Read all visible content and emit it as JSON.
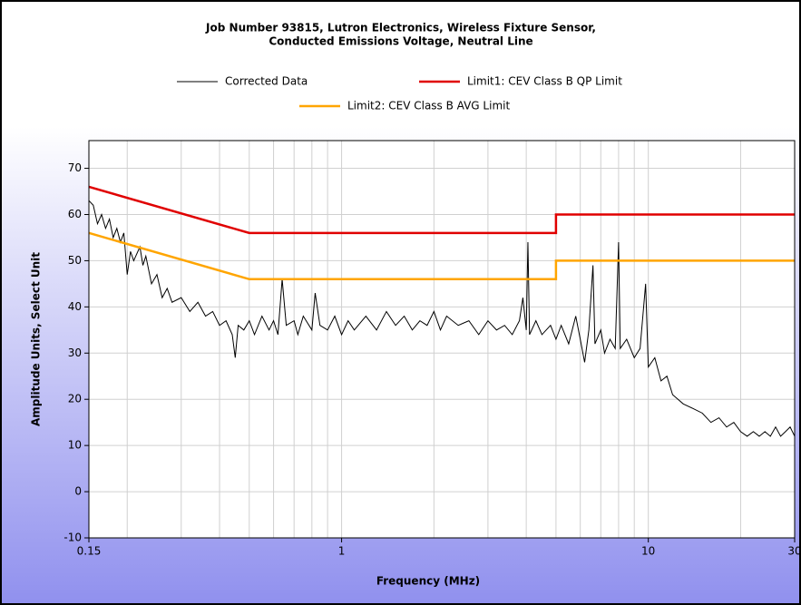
{
  "chart_data": {
    "type": "line",
    "title": [
      "Job Number 93815, Lutron Electronics, Wireless Fixture Sensor,",
      "Conducted Emissions Voltage, Neutral Line"
    ],
    "x_label": "Frequency (MHz)",
    "y_label": "Amplitude Units, Select Unit",
    "xscale": "log",
    "xlim": [
      0.15,
      30
    ],
    "ylim": [
      -10,
      76
    ],
    "xticks": [
      0.15,
      1,
      10,
      30
    ],
    "minor_xticks": [
      0.2,
      0.3,
      0.4,
      0.5,
      0.6,
      0.7,
      0.8,
      0.9,
      2,
      3,
      4,
      5,
      6,
      7,
      8,
      9,
      20
    ],
    "yticks": [
      -10,
      0,
      10,
      20,
      30,
      40,
      50,
      60,
      70
    ],
    "grid": true,
    "series": [
      {
        "name": "Corrected Data",
        "color": "#000000",
        "x": [
          0.15,
          0.155,
          0.16,
          0.165,
          0.17,
          0.175,
          0.18,
          0.185,
          0.19,
          0.195,
          0.2,
          0.205,
          0.21,
          0.22,
          0.225,
          0.23,
          0.24,
          0.25,
          0.26,
          0.27,
          0.28,
          0.3,
          0.32,
          0.34,
          0.36,
          0.38,
          0.4,
          0.42,
          0.44,
          0.45,
          0.46,
          0.48,
          0.5,
          0.52,
          0.55,
          0.58,
          0.6,
          0.62,
          0.64,
          0.66,
          0.7,
          0.72,
          0.75,
          0.8,
          0.82,
          0.85,
          0.9,
          0.95,
          1,
          1.05,
          1.1,
          1.2,
          1.3,
          1.4,
          1.5,
          1.6,
          1.7,
          1.8,
          1.9,
          2,
          2.1,
          2.2,
          2.4,
          2.6,
          2.8,
          3,
          3.2,
          3.4,
          3.6,
          3.8,
          3.9,
          4,
          4.05,
          4.1,
          4.3,
          4.5,
          4.8,
          5,
          5.2,
          5.5,
          5.8,
          6,
          6.2,
          6.4,
          6.6,
          6.7,
          7,
          7.2,
          7.5,
          7.8,
          8,
          8.1,
          8.5,
          9,
          9.4,
          9.8,
          10,
          10.5,
          11,
          11.5,
          12,
          13,
          14,
          15,
          16,
          17,
          18,
          19,
          20,
          21,
          22,
          23,
          24,
          25,
          26,
          27,
          28,
          29,
          30
        ],
        "values": [
          63,
          62,
          58,
          60,
          57,
          59,
          55,
          57,
          54,
          56,
          47,
          52,
          50,
          53,
          49,
          51,
          45,
          47,
          42,
          44,
          41,
          42,
          39,
          41,
          38,
          39,
          36,
          37,
          34,
          29,
          36,
          35,
          37,
          34,
          38,
          35,
          37,
          34,
          46,
          36,
          37,
          34,
          38,
          35,
          43,
          36,
          35,
          38,
          34,
          37,
          35,
          38,
          35,
          39,
          36,
          38,
          35,
          37,
          36,
          39,
          35,
          38,
          36,
          37,
          34,
          37,
          35,
          36,
          34,
          37,
          42,
          35,
          54,
          34,
          37,
          34,
          36,
          33,
          36,
          32,
          38,
          33,
          28,
          35,
          49,
          32,
          35,
          30,
          33,
          31,
          54,
          31,
          33,
          29,
          31,
          45,
          27,
          29,
          24,
          25,
          21,
          19,
          18,
          17,
          15,
          16,
          14,
          15,
          13,
          12,
          13,
          12,
          13,
          12,
          14,
          12,
          13,
          14,
          12
        ]
      },
      {
        "name": "Limit1: CEV Class B QP Limit",
        "color": "#e00000",
        "x": [
          0.15,
          0.5,
          5,
          5,
          30
        ],
        "values": [
          66,
          56,
          56,
          60,
          60
        ]
      },
      {
        "name": "Limit2: CEV Class B AVG Limit",
        "color": "#ffa500",
        "x": [
          0.15,
          0.5,
          5,
          5,
          30
        ],
        "values": [
          56,
          46,
          46,
          50,
          50
        ]
      }
    ]
  }
}
